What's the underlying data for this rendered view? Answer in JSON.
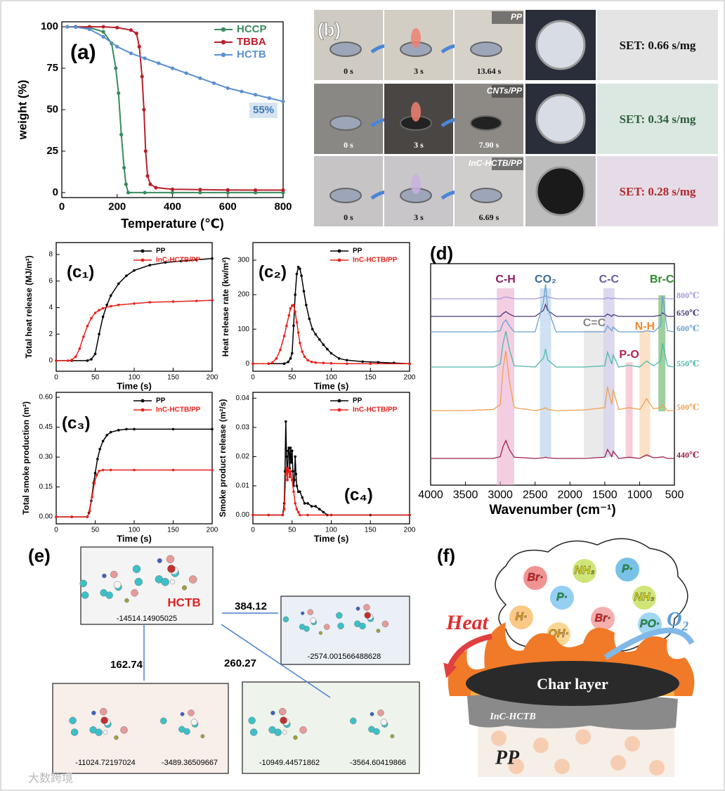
{
  "chart_data": [
    {
      "type": "line",
      "panel_label": "(a)",
      "xlabel": "Temperature (℃)",
      "ylabel": "weight (%)",
      "xlim": [
        0,
        800
      ],
      "ylim": [
        -3,
        103
      ],
      "xticks": [
        0,
        200,
        400,
        600,
        800
      ],
      "yticks": [
        0,
        25,
        50,
        75,
        100
      ],
      "legend": "upper right",
      "annotations": [
        "55%"
      ],
      "series": [
        {
          "name": "HCCP",
          "color": "#3a8a5c",
          "x": [
            20,
            50,
            100,
            150,
            180,
            195,
            205,
            215,
            225,
            232,
            240,
            300,
            400,
            500,
            600,
            700,
            800
          ],
          "values": [
            100,
            100,
            99.5,
            97,
            90,
            75,
            60,
            35,
            15,
            5,
            0,
            0,
            0,
            0,
            0,
            0,
            0
          ]
        },
        {
          "name": "TBBA",
          "color": "#b8202a",
          "x": [
            20,
            50,
            100,
            150,
            200,
            250,
            270,
            280,
            290,
            297,
            303,
            310,
            320,
            340,
            400,
            500,
            600,
            700,
            800
          ],
          "values": [
            100,
            100,
            100,
            100,
            99.5,
            98,
            96,
            88,
            70,
            50,
            25,
            10,
            5,
            3,
            2,
            1.8,
            1.6,
            1.5,
            1.5
          ]
        },
        {
          "name": "HCTB",
          "color": "#5b8fd0",
          "x": [
            20,
            50,
            100,
            150,
            200,
            250,
            300,
            350,
            400,
            450,
            500,
            550,
            600,
            650,
            700,
            750,
            800
          ],
          "values": [
            100,
            99.8,
            98.5,
            94,
            88,
            84,
            81,
            78,
            75,
            72,
            69,
            66,
            63,
            61,
            59,
            57,
            55
          ]
        }
      ]
    },
    {
      "type": "line",
      "panel_label": "(c₁)",
      "xlabel": "Time (s)",
      "ylabel": "Total heat release (MJ/m²)",
      "xlim": [
        0,
        200
      ],
      "ylim": [
        -0.8,
        8.9
      ],
      "xticks": [
        0,
        50,
        100,
        150,
        200
      ],
      "yticks": [
        0,
        2,
        4,
        6,
        8
      ],
      "legend": "upper right",
      "series": [
        {
          "name": "PP",
          "color": "#000000",
          "x": [
            0,
            20,
            40,
            45,
            50,
            55,
            60,
            65,
            70,
            80,
            90,
            100,
            120,
            140,
            160,
            180,
            200
          ],
          "values": [
            0,
            0,
            0,
            0.1,
            0.5,
            2,
            3.3,
            4.2,
            4.9,
            5.8,
            6.4,
            6.8,
            7.2,
            7.4,
            7.5,
            7.6,
            7.7
          ]
        },
        {
          "name": "InC-HCTB/PP",
          "color": "#e8201a",
          "x": [
            0,
            15,
            20,
            25,
            30,
            35,
            40,
            45,
            50,
            55,
            60,
            70,
            80,
            100,
            120,
            150,
            180,
            200
          ],
          "values": [
            0,
            0,
            0.05,
            0.3,
            0.9,
            1.8,
            2.6,
            3.2,
            3.6,
            3.8,
            3.95,
            4.1,
            4.2,
            4.3,
            4.4,
            4.45,
            4.5,
            4.55
          ]
        }
      ]
    },
    {
      "type": "line",
      "panel_label": "(c₂)",
      "xlabel": "Time (s)",
      "ylabel": "Heat release rate (kw/m²)",
      "xlim": [
        0,
        200
      ],
      "ylim": [
        -22,
        351
      ],
      "xticks": [
        0,
        50,
        100,
        150,
        200
      ],
      "yticks": [
        0,
        100,
        200,
        300
      ],
      "legend": "upper right",
      "series": [
        {
          "name": "PP",
          "color": "#000000",
          "x": [
            0,
            20,
            40,
            45,
            48,
            50,
            52,
            54,
            56,
            58,
            60,
            62,
            65,
            68,
            72,
            76,
            80,
            85,
            90,
            95,
            100,
            110,
            120,
            140,
            160,
            180,
            200
          ],
          "values": [
            0,
            0,
            0,
            5,
            15,
            30,
            110,
            200,
            260,
            280,
            275,
            255,
            210,
            170,
            130,
            100,
            85,
            70,
            55,
            42,
            30,
            15,
            10,
            6,
            4,
            2,
            0
          ]
        },
        {
          "name": "InC-HCTB/PP",
          "color": "#e8201a",
          "x": [
            0,
            20,
            25,
            30,
            35,
            40,
            43,
            46,
            48,
            50,
            52,
            54,
            56,
            58,
            60,
            63,
            66,
            70,
            75,
            80,
            90,
            100,
            120,
            150,
            200
          ],
          "values": [
            0,
            0,
            3,
            15,
            40,
            80,
            110,
            140,
            160,
            168,
            170,
            150,
            120,
            90,
            60,
            35,
            20,
            10,
            5,
            3,
            2,
            1,
            0,
            0,
            0
          ]
        }
      ]
    },
    {
      "type": "line",
      "panel_label": "(c₃)",
      "xlabel": "Time (s)",
      "ylabel": "Total smoke production (m²)",
      "xlim": [
        0,
        200
      ],
      "ylim": [
        -0.035,
        0.625
      ],
      "xticks": [
        0,
        50,
        100,
        150,
        200
      ],
      "yticks": [
        {
          "value": 0,
          "label": "0.00"
        },
        0.15,
        {
          "value": 0.3,
          "label": "0.30"
        },
        0.45,
        {
          "value": 0.6,
          "label": "0.60"
        }
      ],
      "legend": "upper right",
      "series": [
        {
          "name": "PP",
          "color": "#000000",
          "x": [
            0,
            20,
            40,
            42,
            45,
            48,
            50,
            53,
            56,
            60,
            65,
            70,
            80,
            90,
            100,
            150,
            200
          ],
          "values": [
            0,
            0,
            0,
            0.02,
            0.08,
            0.17,
            0.22,
            0.29,
            0.34,
            0.38,
            0.41,
            0.425,
            0.435,
            0.44,
            0.44,
            0.44,
            0.44
          ]
        },
        {
          "name": "InC-HCTB/PP",
          "color": "#e8201a",
          "x": [
            0,
            20,
            40,
            43,
            46,
            49,
            52,
            55,
            60,
            70,
            100,
            150,
            200
          ],
          "values": [
            0,
            0,
            0,
            0.03,
            0.1,
            0.17,
            0.21,
            0.23,
            0.235,
            0.235,
            0.235,
            0.235,
            0.235
          ]
        }
      ]
    },
    {
      "type": "line",
      "panel_label": "(c₄)",
      "xlabel": "Time (s)",
      "ylabel": "Smoke product release (m²/s)",
      "xlim": [
        0,
        200
      ],
      "ylim": [
        -0.003,
        0.042
      ],
      "xticks": [
        0,
        50,
        100,
        150,
        200
      ],
      "yticks": [
        {
          "value": 0,
          "label": "0.00"
        },
        0.01,
        0.02,
        0.03,
        0.04
      ],
      "legend": "upper right",
      "series": [
        {
          "name": "PP",
          "color": "#000000",
          "x": [
            0,
            20,
            38,
            40,
            41,
            42,
            43,
            44,
            45,
            46,
            47,
            48,
            49,
            50,
            51,
            52,
            53,
            54,
            55,
            56,
            58,
            60,
            63,
            66,
            70,
            75,
            80,
            85,
            90,
            95,
            100,
            150,
            200
          ],
          "values": [
            0,
            0,
            0,
            0.004,
            0.015,
            0.032,
            0.02,
            0.012,
            0.022,
            0.023,
            0.016,
            0.023,
            0.018,
            0.022,
            0.015,
            0.01,
            0.012,
            0.02,
            0.014,
            0.01,
            0.008,
            0.008,
            0.006,
            0.004,
            0.004,
            0.003,
            0.003,
            0.002,
            0.001,
            0,
            0,
            0,
            0
          ]
        },
        {
          "name": "InC-HCTB/PP",
          "color": "#e8201a",
          "x": [
            0,
            20,
            38,
            40,
            42,
            43,
            44,
            45,
            46,
            47,
            48,
            50,
            52,
            54,
            56,
            58,
            60,
            70,
            100,
            200
          ],
          "values": [
            0,
            0,
            0,
            0.002,
            0.014,
            0.016,
            0.012,
            0.016,
            0.015,
            0.013,
            0.015,
            0.012,
            0.008,
            0.004,
            0.002,
            0.001,
            0,
            0,
            0,
            0
          ]
        }
      ]
    },
    {
      "type": "spectra",
      "panel_label": "(d)",
      "xlabel": "Wavenumber (cm⁻¹)",
      "xlim": [
        4000,
        500
      ],
      "xticks": [
        4000,
        3500,
        3000,
        2500,
        2000,
        1500,
        1000,
        500
      ],
      "x": [
        4000,
        3500,
        3100,
        3000,
        2960,
        2920,
        2870,
        2800,
        2500,
        2380,
        2350,
        2320,
        2200,
        1800,
        1500,
        1460,
        1400,
        1380,
        1300,
        1150,
        1000,
        950,
        900,
        800,
        700,
        670,
        600,
        500
      ],
      "series": [
        {
          "name": "800℃",
          "color": "#a898d8",
          "values": [
            0,
            0,
            0,
            0,
            0.02,
            0.03,
            0.02,
            0,
            0,
            0.03,
            0.05,
            0.03,
            0,
            0,
            0,
            0.02,
            0,
            0.01,
            0,
            0,
            0,
            0,
            0,
            0,
            0,
            0.02,
            0,
            0
          ]
        },
        {
          "name": "650℃",
          "color": "#4a3a7a",
          "values": [
            0,
            0,
            0,
            0,
            0.05,
            0.08,
            0.04,
            0,
            0,
            0.1,
            0.2,
            0.1,
            0,
            0,
            0,
            0.04,
            0,
            0.03,
            0,
            0,
            0,
            0,
            0,
            0,
            0.02,
            0.06,
            0,
            0
          ]
        },
        {
          "name": "600℃",
          "color": "#6aa0d0",
          "values": [
            0,
            0,
            0,
            0.02,
            0.15,
            0.2,
            0.1,
            0,
            0,
            0.5,
            0.8,
            0.4,
            0,
            0,
            0,
            0.1,
            0.02,
            0.08,
            0,
            0,
            0,
            0,
            0.02,
            0,
            0.1,
            0.6,
            0.02,
            0
          ]
        },
        {
          "name": "550℃",
          "color": "#4fb8a8",
          "values": [
            0,
            0,
            0,
            0.05,
            0.4,
            0.6,
            0.3,
            0.02,
            0,
            0.15,
            0.3,
            0.12,
            0,
            0,
            0.02,
            0.25,
            0.05,
            0.2,
            0,
            0.03,
            0,
            0.05,
            0.1,
            0.02,
            0.1,
            0.4,
            0.02,
            0
          ]
        },
        {
          "name": "500℃",
          "color": "#f0a050",
          "values": [
            0,
            0,
            0.02,
            0.1,
            0.7,
            1.0,
            0.5,
            0.05,
            0,
            0.03,
            0.05,
            0.02,
            0,
            0.01,
            0.05,
            0.4,
            0.1,
            0.35,
            0.02,
            0.05,
            0.02,
            0.1,
            0.2,
            0.03,
            0.05,
            0.1,
            0,
            0
          ]
        },
        {
          "name": "440℃",
          "color": "#9a2050",
          "values": [
            0,
            0,
            0,
            0.03,
            0.2,
            0.3,
            0.15,
            0.02,
            0,
            0.01,
            0.02,
            0.01,
            0,
            0,
            0.02,
            0.15,
            0.03,
            0.12,
            0,
            0.02,
            0,
            0.03,
            0.06,
            0.01,
            0.02,
            0.03,
            0,
            0
          ]
        }
      ],
      "bands": [
        {
          "label": "C-H",
          "range": [
            3050,
            2800
          ],
          "color": "#eaa6cc",
          "text_color": "#8a2060"
        },
        {
          "label": "CO₂",
          "range": [
            2430,
            2270
          ],
          "color": "#a8c8e8",
          "text_color": "#3a6a9a"
        },
        {
          "label": "C-C",
          "range": [
            1520,
            1360
          ],
          "color": "#c0b8e0",
          "text_color": "#6a5aa0"
        },
        {
          "label": "Br-C",
          "range": [
            730,
            630
          ],
          "color": "#4caa4c",
          "text_color": "#2a8a2a"
        },
        {
          "label": "C=C",
          "range": [
            1800,
            1500
          ],
          "color": "#d8d8d8",
          "text_color": "#888888"
        },
        {
          "label": "N-H",
          "range": [
            1000,
            850
          ],
          "color": "#f8c898",
          "text_color": "#f08a30"
        },
        {
          "label": "P-O",
          "range": [
            1200,
            1100
          ],
          "color": "#f0a8b8",
          "text_color": "#b02050"
        }
      ]
    }
  ],
  "photo_panel": {
    "label": "(b)",
    "rows": [
      {
        "sample": "PP",
        "times": [
          "0 s",
          "3 s",
          "13.64 s"
        ],
        "set": "SET: 0.66 s/mg"
      },
      {
        "sample": "CNTs/PP",
        "times": [
          "0 s",
          "3 s",
          "7.90 s"
        ],
        "set": "SET: 0.34 s/mg"
      },
      {
        "sample": "InC-HCTB/PP",
        "times": [
          "0 s",
          "3 s",
          "6.69 s"
        ],
        "set": "SET: 0.28 s/mg"
      }
    ]
  },
  "mechanism": {
    "label": "(e)",
    "parent": {
      "name": "HCTB",
      "energy": "-14514.14905025"
    },
    "paths": [
      {
        "barrier": "384.12",
        "products": [
          "-2574.001566488628"
        ]
      },
      {
        "barrier": "162.74",
        "products": [
          "-11024.72197024",
          "-3489.36509667"
        ]
      },
      {
        "barrier": "260.27",
        "products": [
          "-10949.44571862",
          "-3564.60419866"
        ]
      }
    ]
  },
  "schematic": {
    "label": "(f)",
    "radicals": [
      "Br·",
      "NH₃",
      "P·",
      "H·",
      "P·",
      "OH·",
      "Br·",
      "NH₃",
      "PO·"
    ],
    "heat": "Heat",
    "oxygen": "O₂",
    "char": "Char layer",
    "additive": "InC-HCTB",
    "matrix": "PP"
  },
  "watermark": "大数跨境"
}
